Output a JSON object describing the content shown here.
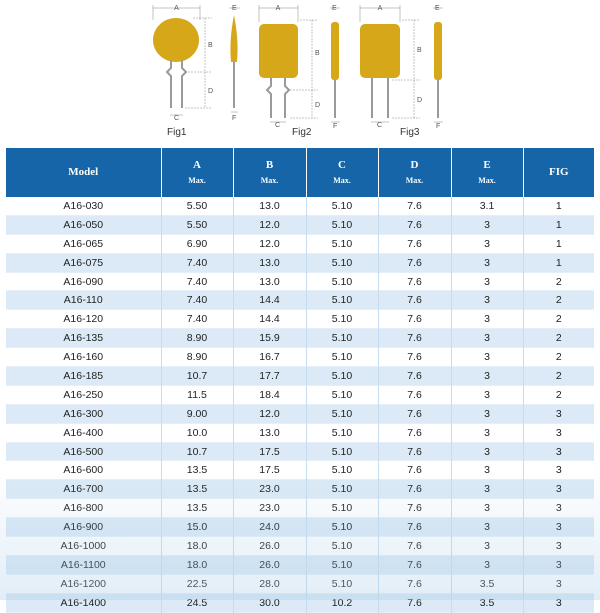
{
  "figures": {
    "fig1_label": "Fig1",
    "fig2_label": "Fig2",
    "fig3_label": "Fig3",
    "dim_a": "A",
    "dim_b": "B",
    "dim_c": "C",
    "dim_d": "D",
    "dim_e": "E",
    "dim_f": "F",
    "body_color": "#d6a719",
    "lead_color": "#9a9a9a"
  },
  "table": {
    "headers": [
      {
        "label": "Model",
        "sub": ""
      },
      {
        "label": "A",
        "sub": "Max."
      },
      {
        "label": "B",
        "sub": "Max."
      },
      {
        "label": "C",
        "sub": "Max."
      },
      {
        "label": "D",
        "sub": "Max."
      },
      {
        "label": "E",
        "sub": "Max."
      },
      {
        "label": "FIG",
        "sub": ""
      }
    ],
    "rows": [
      [
        "A16-030",
        "5.50",
        "13.0",
        "5.10",
        "7.6",
        "3.1",
        "1"
      ],
      [
        "A16-050",
        "5.50",
        "12.0",
        "5.10",
        "7.6",
        "3",
        "1"
      ],
      [
        "A16-065",
        "6.90",
        "12.0",
        "5.10",
        "7.6",
        "3",
        "1"
      ],
      [
        "A16-075",
        "7.40",
        "13.0",
        "5.10",
        "7.6",
        "3",
        "1"
      ],
      [
        "A16-090",
        "7.40",
        "13.0",
        "5.10",
        "7.6",
        "3",
        "2"
      ],
      [
        "A16-110",
        "7.40",
        "14.4",
        "5.10",
        "7.6",
        "3",
        "2"
      ],
      [
        "A16-120",
        "7.40",
        "14.4",
        "5.10",
        "7.6",
        "3",
        "2"
      ],
      [
        "A16-135",
        "8.90",
        "15.9",
        "5.10",
        "7.6",
        "3",
        "2"
      ],
      [
        "A16-160",
        "8.90",
        "16.7",
        "5.10",
        "7.6",
        "3",
        "2"
      ],
      [
        "A16-185",
        "10.7",
        "17.7",
        "5.10",
        "7.6",
        "3",
        "2"
      ],
      [
        "A16-250",
        "11.5",
        "18.4",
        "5.10",
        "7.6",
        "3",
        "2"
      ],
      [
        "A16-300",
        "9.00",
        "12.0",
        "5.10",
        "7.6",
        "3",
        "3"
      ],
      [
        "A16-400",
        "10.0",
        "13.0",
        "5.10",
        "7.6",
        "3",
        "3"
      ],
      [
        "A16-500",
        "10.7",
        "17.5",
        "5.10",
        "7.6",
        "3",
        "3"
      ],
      [
        "A16-600",
        "13.5",
        "17.5",
        "5.10",
        "7.6",
        "3",
        "3"
      ],
      [
        "A16-700",
        "13.5",
        "23.0",
        "5.10",
        "7.6",
        "3",
        "3"
      ],
      [
        "A16-800",
        "13.5",
        "23.0",
        "5.10",
        "7.6",
        "3",
        "3"
      ],
      [
        "A16-900",
        "15.0",
        "24.0",
        "5.10",
        "7.6",
        "3",
        "3"
      ],
      [
        "A16-1000",
        "18.0",
        "26.0",
        "5.10",
        "7.6",
        "3",
        "3"
      ],
      [
        "A16-1100",
        "18.0",
        "26.0",
        "5.10",
        "7.6",
        "3",
        "3"
      ],
      [
        "A16-1200",
        "22.5",
        "28.0",
        "5.10",
        "7.6",
        "3.5",
        "3"
      ],
      [
        "A16-1400",
        "24.5",
        "30.0",
        "10.2",
        "7.6",
        "3.5",
        "3"
      ]
    ]
  }
}
